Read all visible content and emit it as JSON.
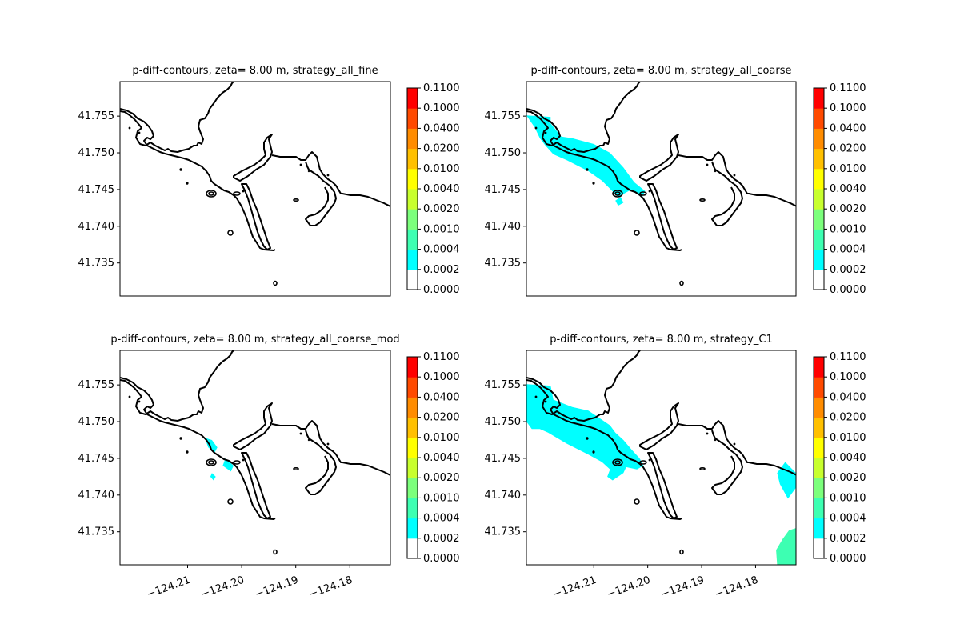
{
  "chart_data": [
    {
      "type": "heatmap",
      "title": "p-diff-contours, zeta= 8.00 m, strategy_all_fine",
      "y_ticks": [
        "41.735",
        "41.740",
        "41.745",
        "41.750",
        "41.755"
      ],
      "y_tick_values": [
        41.735,
        41.74,
        41.745,
        41.75,
        41.755
      ],
      "x_ticks": [],
      "x_tick_values": [],
      "xlim": [
        -124.2225,
        -124.1725
      ],
      "ylim": [
        41.7305,
        41.7597
      ],
      "colorbar": {
        "ticks": [
          "0.0000",
          "0.0002",
          "0.0004",
          "0.0010",
          "0.0020",
          "0.0040",
          "0.0100",
          "0.0200",
          "0.0400",
          "0.1000",
          "0.1100"
        ],
        "colors": [
          "#ffffff",
          "#00ffff",
          "#3dffb2",
          "#7cff7c",
          "#c8ff2e",
          "#ffff00",
          "#ffc000",
          "#ff8c00",
          "#ff4a00",
          "#ff0000"
        ]
      },
      "regions": []
    },
    {
      "type": "heatmap",
      "title": "p-diff-contours, zeta= 8.00 m, strategy_all_coarse",
      "y_ticks": [
        "41.735",
        "41.740",
        "41.745",
        "41.750",
        "41.755"
      ],
      "y_tick_values": [
        41.735,
        41.74,
        41.745,
        41.75,
        41.755
      ],
      "x_ticks": [],
      "x_tick_values": [],
      "xlim": [
        -124.2225,
        -124.1725
      ],
      "ylim": [
        41.7305,
        41.7597
      ],
      "colorbar": {
        "ticks": [
          "0.0000",
          "0.0002",
          "0.0004",
          "0.0010",
          "0.0020",
          "0.0040",
          "0.0100",
          "0.0200",
          "0.0400",
          "0.1000",
          "0.1100"
        ],
        "colors": [
          "#ffffff",
          "#00ffff",
          "#3dffb2",
          "#7cff7c",
          "#c8ff2e",
          "#ffff00",
          "#ffc000",
          "#ff8c00",
          "#ff4a00",
          "#ff0000"
        ]
      },
      "regions": [
        {
          "level": "0.0002-0.0004",
          "color": "#00ffff",
          "points": [
            [
              -124.2225,
              41.7551
            ],
            [
              -124.218,
              41.7549
            ],
            [
              -124.218,
              41.754
            ],
            [
              -124.216,
              41.7522
            ],
            [
              -124.214,
              41.752
            ],
            [
              -124.21,
              41.7512
            ],
            [
              -124.207,
              41.75
            ],
            [
              -124.2045,
              41.748
            ],
            [
              -124.2025,
              41.746
            ],
            [
              -124.2005,
              41.7448
            ],
            [
              -124.201,
              41.744
            ],
            [
              -124.203,
              41.745
            ],
            [
              -124.2055,
              41.744
            ],
            [
              -124.2085,
              41.7462
            ],
            [
              -124.211,
              41.7475
            ],
            [
              -124.215,
              41.749
            ],
            [
              -124.2175,
              41.7498
            ],
            [
              -124.219,
              41.751
            ],
            [
              -124.22,
              41.752
            ],
            [
              -124.221,
              41.7535
            ]
          ]
        },
        {
          "level": "0.0002-0.0004",
          "color": "#00ffff",
          "points": [
            [
              -124.206,
              41.7435
            ],
            [
              -124.205,
              41.744
            ],
            [
              -124.2045,
              41.7432
            ],
            [
              -124.2055,
              41.7428
            ]
          ]
        }
      ]
    },
    {
      "type": "heatmap",
      "title": "p-diff-contours, zeta= 8.00 m, strategy_all_coarse_mod",
      "y_ticks": [
        "41.735",
        "41.740",
        "41.745",
        "41.750",
        "41.755"
      ],
      "y_tick_values": [
        41.735,
        41.74,
        41.745,
        41.75,
        41.755
      ],
      "x_ticks": [
        "−124.21",
        "−124.20",
        "−124.19",
        "−124.18"
      ],
      "x_tick_values": [
        -124.21,
        -124.2,
        -124.19,
        -124.18
      ],
      "xlim": [
        -124.2225,
        -124.1725
      ],
      "ylim": [
        41.7305,
        41.7597
      ],
      "colorbar": {
        "ticks": [
          "0.0000",
          "0.0002",
          "0.0004",
          "0.0010",
          "0.0020",
          "0.0040",
          "0.0100",
          "0.0200",
          "0.0400",
          "0.1000",
          "0.1100"
        ],
        "colors": [
          "#ffffff",
          "#00ffff",
          "#3dffb2",
          "#7cff7c",
          "#c8ff2e",
          "#ffff00",
          "#ffc000",
          "#ff8c00",
          "#ff4a00",
          "#ff0000"
        ]
      },
      "regions": [
        {
          "level": "0.0002-0.0004",
          "color": "#00ffff",
          "points": [
            [
              -124.2068,
              41.7478
            ],
            [
              -124.2055,
              41.7475
            ],
            [
              -124.2045,
              41.7465
            ],
            [
              -124.205,
              41.7458
            ],
            [
              -124.2062,
              41.7465
            ]
          ]
        },
        {
          "level": "0.0002-0.0004",
          "color": "#00ffff",
          "points": [
            [
              -124.203,
              41.745
            ],
            [
              -124.2015,
              41.744
            ],
            [
              -124.202,
              41.7432
            ],
            [
              -124.2035,
              41.744
            ]
          ]
        },
        {
          "level": "0.0002-0.0004",
          "color": "#00ffff",
          "points": [
            [
              -124.2055,
              41.743
            ],
            [
              -124.2048,
              41.7425
            ],
            [
              -124.2052,
              41.742
            ],
            [
              -124.2058,
              41.7425
            ]
          ]
        }
      ]
    },
    {
      "type": "heatmap",
      "title": "p-diff-contours, zeta= 8.00 m, strategy_C1",
      "y_ticks": [
        "41.735",
        "41.740",
        "41.745",
        "41.750",
        "41.755"
      ],
      "y_tick_values": [
        41.735,
        41.74,
        41.745,
        41.75,
        41.755
      ],
      "x_ticks": [
        "−124.21",
        "−124.20",
        "−124.19",
        "−124.18"
      ],
      "x_tick_values": [
        -124.21,
        -124.2,
        -124.19,
        -124.18
      ],
      "xlim": [
        -124.2225,
        -124.1725
      ],
      "ylim": [
        41.7305,
        41.7597
      ],
      "colorbar": {
        "ticks": [
          "0.0000",
          "0.0002",
          "0.0004",
          "0.0010",
          "0.0020",
          "0.0040",
          "0.0100",
          "0.0200",
          "0.0400",
          "0.1000",
          "0.1100"
        ],
        "colors": [
          "#ffffff",
          "#00ffff",
          "#3dffb2",
          "#7cff7c",
          "#c8ff2e",
          "#ffff00",
          "#ffc000",
          "#ff8c00",
          "#ff4a00",
          "#ff0000"
        ]
      },
      "regions": [
        {
          "level": "0.0002-0.0004",
          "color": "#00ffff",
          "points": [
            [
              -124.2225,
              41.7551
            ],
            [
              -124.218,
              41.7549
            ],
            [
              -124.2175,
              41.753
            ],
            [
              -124.214,
              41.752
            ],
            [
              -124.211,
              41.7515
            ],
            [
              -124.209,
              41.7505
            ],
            [
              -124.207,
              41.7495
            ],
            [
              -124.206,
              41.7485
            ],
            [
              -124.2045,
              41.7475
            ],
            [
              -124.203,
              41.7462
            ],
            [
              -124.2015,
              41.745
            ],
            [
              -124.2008,
              41.744
            ],
            [
              -124.202,
              41.7435
            ],
            [
              -124.204,
              41.7438
            ],
            [
              -124.2045,
              41.743
            ],
            [
              -124.2065,
              41.742
            ],
            [
              -124.2075,
              41.7425
            ],
            [
              -124.207,
              41.7435
            ],
            [
              -124.2085,
              41.7445
            ],
            [
              -124.211,
              41.7455
            ],
            [
              -124.215,
              41.747
            ],
            [
              -124.2185,
              41.7485
            ],
            [
              -124.22,
              41.749
            ],
            [
              -124.2215,
              41.749
            ],
            [
              -124.2225,
              41.75
            ]
          ]
        },
        {
          "level": "0.0002-0.0004",
          "color": "#00ffff",
          "points": [
            [
              -124.1725,
              41.741
            ],
            [
              -124.1725,
              41.743
            ],
            [
              -124.1745,
              41.7445
            ],
            [
              -124.176,
              41.743
            ],
            [
              -124.1755,
              41.7415
            ],
            [
              -124.174,
              41.7395
            ]
          ]
        },
        {
          "level": "0.0004-0.0010",
          "color": "#3dffb2",
          "points": [
            [
              -124.1725,
              41.7355
            ],
            [
              -124.1725,
              41.7305
            ],
            [
              -124.176,
              41.7305
            ],
            [
              -124.1762,
              41.7325
            ],
            [
              -124.175,
              41.734
            ],
            [
              -124.1738,
              41.7352
            ]
          ]
        }
      ]
    }
  ]
}
